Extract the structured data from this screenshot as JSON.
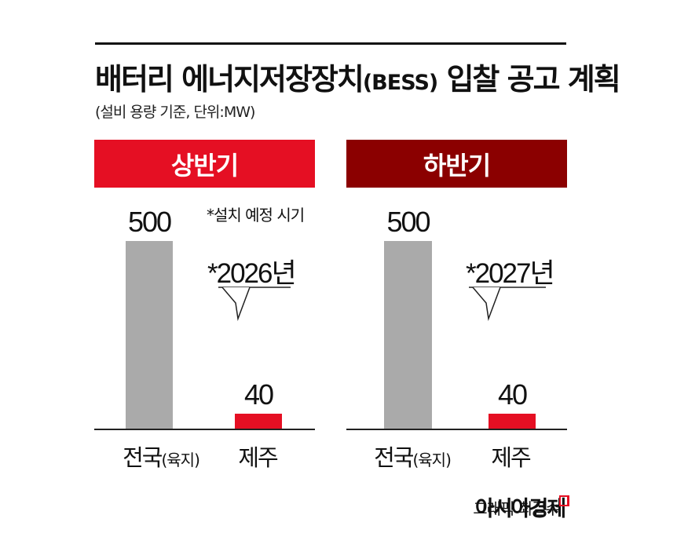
{
  "header": {
    "title_main": "배터리 에너지저장장치",
    "title_paren": "(BESS)",
    "title_tail": " 입찰 공고 계획",
    "subtitle": "(설비 용량 기준, 단위:MW)"
  },
  "note": "*설치 예정 시기",
  "colors": {
    "red": "#e50f23",
    "dark_red": "#8b0000",
    "gray": "#aaaaaa"
  },
  "chart_data": [
    {
      "type": "bar",
      "title": "상반기",
      "categories": [
        "전국(육지)",
        "제주"
      ],
      "values": [
        500,
        40
      ],
      "bar_colors": [
        "#aaaaaa",
        "#e50f23"
      ],
      "callout": "*2026년"
    },
    {
      "type": "bar",
      "title": "하반기",
      "categories": [
        "전국(육지)",
        "제주"
      ],
      "values": [
        500,
        40
      ],
      "bar_colors": [
        "#aaaaaa",
        "#e50f23"
      ],
      "callout": "*2027년"
    }
  ],
  "labels": {
    "cat1_main": "전국",
    "cat1_paren": "(육지)",
    "cat2": "제주"
  },
  "footer": {
    "credit": "그래픽 최길수",
    "brand": "아시아경제"
  }
}
